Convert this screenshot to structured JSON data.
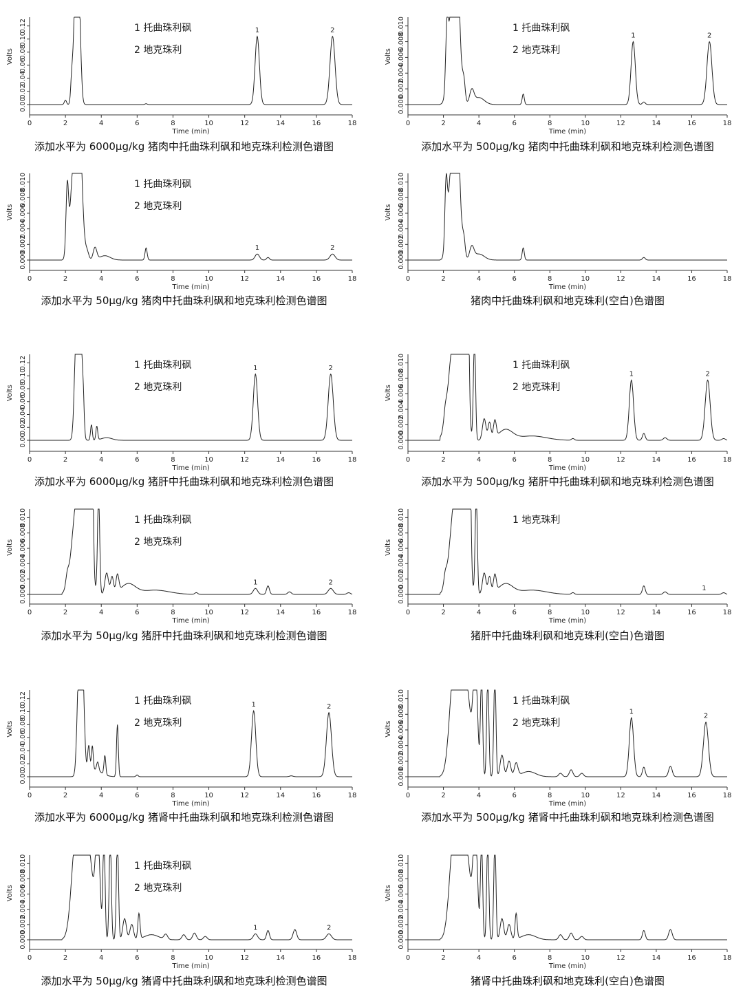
{
  "chart_data": [
    {
      "type": "line",
      "caption": "添加水平为 6000μg/kg 猪肉中托曲珠利砜和地克珠利检测色谱图",
      "ylabel": "Volts",
      "xlabel": "Time (min)",
      "xlim": [
        0,
        18
      ],
      "xticks": [
        "0",
        "2",
        "4",
        "6",
        "8",
        "10",
        "12",
        "14",
        "16",
        "18"
      ],
      "yticks": [
        "0.00",
        "0.02",
        "0.04",
        "0.06",
        "0.08",
        "0.10",
        "0.12"
      ],
      "legend": [
        "1  托曲珠利砜",
        "2  地克珠利"
      ],
      "peaks": [
        {
          "label": "1",
          "t": 12.7,
          "h": 0.78,
          "w": 0.12
        },
        {
          "label": "2",
          "t": 16.9,
          "h": 0.78,
          "w": 0.14
        }
      ],
      "baseline_peaks": [
        [
          2.0,
          0.05,
          0.06
        ],
        [
          2.35,
          0.25,
          0.06
        ],
        [
          2.55,
          1.2,
          0.1
        ],
        [
          2.75,
          1.2,
          0.1
        ],
        [
          6.5,
          0.01,
          0.06
        ]
      ]
    },
    {
      "type": "line",
      "caption": "添加水平为 500μg/kg 猪肉中托曲珠利砜和地克珠利检测色谱图",
      "ylabel": "Volts",
      "xlabel": "Time (min)",
      "xlim": [
        0,
        18
      ],
      "xticks": [
        "0",
        "2",
        "4",
        "6",
        "8",
        "10",
        "12",
        "14",
        "16",
        "18"
      ],
      "yticks": [
        "0.000",
        "0.002",
        "0.004",
        "0.006",
        "0.008",
        "0.010"
      ],
      "legend": [
        "1  托曲珠利砜",
        "2  地克珠利"
      ],
      "peaks": [
        {
          "label": "1",
          "t": 12.7,
          "h": 0.72,
          "w": 0.12
        },
        {
          "label": "2",
          "t": 17.0,
          "h": 0.72,
          "w": 0.14
        }
      ],
      "baseline_peaks": [
        [
          2.2,
          0.65,
          0.07
        ],
        [
          2.5,
          1.2,
          0.2
        ],
        [
          2.8,
          1.2,
          0.15
        ],
        [
          3.15,
          0.25,
          0.08
        ],
        [
          3.6,
          0.15,
          0.12
        ],
        [
          4.0,
          0.08,
          0.3
        ],
        [
          6.5,
          0.12,
          0.06
        ],
        [
          13.3,
          0.03,
          0.08
        ]
      ]
    },
    {
      "type": "line",
      "caption": "添加水平为 50μg/kg 猪肉中托曲珠利砜和地克珠利检测色谱图",
      "ylabel": "Volts",
      "xlabel": "Time (min)",
      "xlim": [
        0,
        18
      ],
      "xticks": [
        "0",
        "2",
        "4",
        "6",
        "8",
        "10",
        "12",
        "14",
        "16",
        "18"
      ],
      "yticks": [
        "0.000",
        "0.002",
        "0.004",
        "0.006",
        "0.008",
        "0.010"
      ],
      "legend": [
        "1  托曲珠利砜",
        "2  地克珠利"
      ],
      "peaks": [
        {
          "label": "1",
          "t": 12.7,
          "h": 0.07,
          "w": 0.12
        },
        {
          "label": "2",
          "t": 16.9,
          "h": 0.07,
          "w": 0.14
        }
      ],
      "baseline_peaks": [
        [
          2.1,
          0.75,
          0.07
        ],
        [
          2.5,
          1.2,
          0.2
        ],
        [
          2.8,
          1.2,
          0.15
        ],
        [
          3.2,
          0.1,
          0.1
        ],
        [
          3.65,
          0.14,
          0.1
        ],
        [
          4.2,
          0.05,
          0.3
        ],
        [
          6.5,
          0.14,
          0.06
        ],
        [
          13.3,
          0.03,
          0.08
        ]
      ]
    },
    {
      "type": "line",
      "caption": "猪肉中托曲珠利砜和地克珠利(空白)色谱图",
      "ylabel": "Volts",
      "xlabel": "Time (min)",
      "xlim": [
        0,
        18
      ],
      "xticks": [
        "0",
        "2",
        "4",
        "6",
        "8",
        "10",
        "12",
        "14",
        "16",
        "18"
      ],
      "yticks": [
        "0.000",
        "0.002",
        "0.004",
        "0.006",
        "0.008",
        "0.010"
      ],
      "legend": [],
      "peaks": [],
      "baseline_peaks": [
        [
          2.15,
          0.72,
          0.07
        ],
        [
          2.5,
          1.2,
          0.2
        ],
        [
          2.8,
          1.2,
          0.15
        ],
        [
          3.15,
          0.22,
          0.08
        ],
        [
          3.6,
          0.14,
          0.12
        ],
        [
          4.0,
          0.07,
          0.3
        ],
        [
          6.5,
          0.14,
          0.06
        ],
        [
          13.3,
          0.03,
          0.08
        ]
      ]
    },
    {
      "type": "line",
      "caption": "添加水平为 6000μg/kg 猪肝中托曲珠利砜和地克珠利检测色谱图",
      "ylabel": "Volts",
      "xlabel": "Time (min)",
      "xlim": [
        0,
        18
      ],
      "xticks": [
        "0",
        "2",
        "4",
        "6",
        "8",
        "10",
        "12",
        "14",
        "16",
        "18"
      ],
      "yticks": [
        "0.00",
        "0.02",
        "0.04",
        "0.06",
        "0.08",
        "0.10",
        "0.12"
      ],
      "legend": [
        "1  托曲珠利砜",
        "2  地克珠利"
      ],
      "peaks": [
        {
          "label": "1",
          "t": 12.6,
          "h": 0.77,
          "w": 0.12
        },
        {
          "label": "2",
          "t": 16.8,
          "h": 0.77,
          "w": 0.14
        }
      ],
      "baseline_peaks": [
        [
          2.6,
          1.2,
          0.1
        ],
        [
          2.85,
          1.2,
          0.1
        ],
        [
          3.0,
          0.25,
          0.05
        ],
        [
          3.45,
          0.18,
          0.05
        ],
        [
          3.75,
          0.16,
          0.05
        ],
        [
          4.3,
          0.03,
          0.3
        ]
      ]
    },
    {
      "type": "line",
      "caption": "添加水平为 500μg/kg 猪肝中托曲珠利砜和地克珠利检测色谱图",
      "ylabel": "Volts",
      "xlabel": "Time (min)",
      "xlim": [
        0,
        18
      ],
      "xticks": [
        "0",
        "2",
        "4",
        "6",
        "8",
        "10",
        "12",
        "14",
        "16",
        "18"
      ],
      "yticks": [
        "0.000",
        "0.002",
        "0.004",
        "0.006",
        "0.008",
        "0.010"
      ],
      "legend": [
        "1  托曲珠利砜",
        "2  地克珠利"
      ],
      "peaks": [
        {
          "label": "1",
          "t": 12.6,
          "h": 0.7,
          "w": 0.12
        },
        {
          "label": "2",
          "t": 16.9,
          "h": 0.7,
          "w": 0.14
        }
      ],
      "baseline_peaks": [
        [
          2.1,
          0.12,
          0.08
        ],
        [
          2.6,
          1.2,
          0.3
        ],
        [
          3.1,
          1.2,
          0.2
        ],
        [
          3.4,
          1.2,
          0.06
        ],
        [
          3.75,
          1.2,
          0.06
        ],
        [
          4.3,
          0.25,
          0.1
        ],
        [
          4.6,
          0.2,
          0.08
        ],
        [
          4.9,
          0.2,
          0.08
        ],
        [
          5.5,
          0.12,
          0.4
        ],
        [
          7.0,
          0.05,
          0.8
        ],
        [
          9.3,
          0.02,
          0.08
        ],
        [
          13.3,
          0.08,
          0.08
        ],
        [
          14.5,
          0.03,
          0.1
        ],
        [
          17.8,
          0.02,
          0.1
        ]
      ]
    },
    {
      "type": "line",
      "caption": "添加水平为 50μg/kg 猪肝中托曲珠利砜和地克珠利检测色谱图",
      "ylabel": "Volts",
      "xlabel": "Time (min)",
      "xlim": [
        0,
        18
      ],
      "xticks": [
        "0",
        "2",
        "4",
        "6",
        "8",
        "10",
        "12",
        "14",
        "16",
        "18"
      ],
      "yticks": [
        "0.000",
        "0.002",
        "0.004",
        "0.006",
        "0.008",
        "0.010"
      ],
      "legend": [
        "1  托曲珠利砜",
        "2  地克珠利"
      ],
      "peaks": [
        {
          "label": "1",
          "t": 12.6,
          "h": 0.07,
          "w": 0.12
        },
        {
          "label": "2",
          "t": 16.8,
          "h": 0.07,
          "w": 0.14
        }
      ],
      "baseline_peaks": [
        [
          2.1,
          0.12,
          0.08
        ],
        [
          2.7,
          1.2,
          0.3
        ],
        [
          3.2,
          1.2,
          0.2
        ],
        [
          3.5,
          1.2,
          0.06
        ],
        [
          3.85,
          1.2,
          0.06
        ],
        [
          4.3,
          0.25,
          0.1
        ],
        [
          4.6,
          0.2,
          0.08
        ],
        [
          4.9,
          0.2,
          0.08
        ],
        [
          5.5,
          0.12,
          0.4
        ],
        [
          7.0,
          0.05,
          0.8
        ],
        [
          9.3,
          0.02,
          0.08
        ],
        [
          13.3,
          0.1,
          0.08
        ],
        [
          14.5,
          0.03,
          0.1
        ],
        [
          17.8,
          0.02,
          0.1
        ]
      ]
    },
    {
      "type": "line",
      "caption": "猪肝中托曲珠利砜和地克珠利(空白)色谱图",
      "ylabel": "Volts",
      "xlabel": "Time (min)",
      "xlim": [
        0,
        18
      ],
      "xticks": [
        "0",
        "2",
        "4",
        "6",
        "8",
        "10",
        "12",
        "14",
        "16",
        "18"
      ],
      "yticks": [
        "0.000",
        "0.002",
        "0.004",
        "0.006",
        "0.008",
        "0.010"
      ],
      "legend": [
        "1 地克珠利"
      ],
      "peaks": [
        {
          "label": "1",
          "t": 16.7,
          "h": 0.0,
          "w": 0.14
        }
      ],
      "baseline_peaks": [
        [
          2.1,
          0.12,
          0.08
        ],
        [
          2.7,
          1.2,
          0.3
        ],
        [
          3.2,
          1.2,
          0.2
        ],
        [
          3.5,
          1.2,
          0.06
        ],
        [
          3.85,
          1.2,
          0.06
        ],
        [
          4.3,
          0.25,
          0.1
        ],
        [
          4.6,
          0.2,
          0.08
        ],
        [
          4.9,
          0.2,
          0.08
        ],
        [
          5.5,
          0.12,
          0.4
        ],
        [
          7.0,
          0.05,
          0.8
        ],
        [
          9.3,
          0.02,
          0.08
        ],
        [
          13.3,
          0.1,
          0.08
        ],
        [
          14.5,
          0.03,
          0.1
        ],
        [
          17.8,
          0.02,
          0.1
        ]
      ]
    },
    {
      "type": "line",
      "caption": "添加水平为 6000μg/kg 猪肾中托曲珠利砜和地克珠利检测色谱图",
      "ylabel": "Volts",
      "xlabel": "Time (min)",
      "xlim": [
        0,
        18
      ],
      "xticks": [
        "0",
        "2",
        "4",
        "6",
        "8",
        "10",
        "12",
        "14",
        "16",
        "18"
      ],
      "yticks": [
        "0.00",
        "0.02",
        "0.04",
        "0.06",
        "0.08",
        "0.10",
        "0.12"
      ],
      "legend": [
        "1  托曲珠利砜",
        "2  地克珠利"
      ],
      "peaks": [
        {
          "label": "1",
          "t": 12.5,
          "h": 0.76,
          "w": 0.12
        },
        {
          "label": "2",
          "t": 16.7,
          "h": 0.74,
          "w": 0.14
        }
      ],
      "baseline_peaks": [
        [
          2.75,
          1.2,
          0.1
        ],
        [
          2.95,
          1.2,
          0.1
        ],
        [
          3.3,
          0.3,
          0.06
        ],
        [
          3.5,
          0.28,
          0.05
        ],
        [
          3.8,
          0.1,
          0.06
        ],
        [
          4.2,
          0.22,
          0.05
        ],
        [
          4.9,
          0.6,
          0.05
        ],
        [
          3.6,
          0.08,
          0.4
        ],
        [
          6.0,
          0.02,
          0.06
        ],
        [
          14.6,
          0.01,
          0.1
        ]
      ]
    },
    {
      "type": "line",
      "caption": "添加水平为 500μg/kg 猪肾中托曲珠利砜和地克珠利检测色谱图",
      "ylabel": "Volts",
      "xlabel": "Time (min)",
      "xlim": [
        0,
        18
      ],
      "xticks": [
        "0",
        "2",
        "4",
        "6",
        "8",
        "10",
        "12",
        "14",
        "16",
        "18"
      ],
      "yticks": [
        "0.000",
        "0.002",
        "0.004",
        "0.006",
        "0.008",
        "0.010"
      ],
      "legend": [
        "1  托曲珠利砜",
        "2  地克珠利"
      ],
      "peaks": [
        {
          "label": "1",
          "t": 12.6,
          "h": 0.68,
          "w": 0.12
        },
        {
          "label": "2",
          "t": 16.8,
          "h": 0.63,
          "w": 0.14
        }
      ],
      "baseline_peaks": [
        [
          2.6,
          1.2,
          0.25
        ],
        [
          3.2,
          1.2,
          0.3
        ],
        [
          3.8,
          1.2,
          0.12
        ],
        [
          4.15,
          1.2,
          0.06
        ],
        [
          4.5,
          1.2,
          0.06
        ],
        [
          4.9,
          1.2,
          0.06
        ],
        [
          5.3,
          0.25,
          0.1
        ],
        [
          5.7,
          0.18,
          0.1
        ],
        [
          6.1,
          0.15,
          0.1
        ],
        [
          6.8,
          0.06,
          0.4
        ],
        [
          8.6,
          0.04,
          0.1
        ],
        [
          9.2,
          0.08,
          0.1
        ],
        [
          9.8,
          0.04,
          0.1
        ],
        [
          13.3,
          0.11,
          0.08
        ],
        [
          14.8,
          0.12,
          0.1
        ]
      ]
    },
    {
      "type": "line",
      "caption": "添加水平为 50μg/kg 猪肾中托曲珠利砜和地克珠利检测色谱图",
      "ylabel": "Volts",
      "xlabel": "Time (min)",
      "xlim": [
        0,
        18
      ],
      "xticks": [
        "0",
        "2",
        "4",
        "6",
        "8",
        "10",
        "12",
        "14",
        "16",
        "18"
      ],
      "yticks": [
        "0.000",
        "0.002",
        "0.004",
        "0.006",
        "0.008",
        "0.010"
      ],
      "legend": [
        "1  托曲珠利砜",
        "2  地克珠利"
      ],
      "peaks": [
        {
          "label": "1",
          "t": 12.6,
          "h": 0.07,
          "w": 0.12
        },
        {
          "label": "2",
          "t": 16.7,
          "h": 0.07,
          "w": 0.14
        }
      ],
      "baseline_peaks": [
        [
          2.6,
          1.2,
          0.25
        ],
        [
          3.2,
          1.2,
          0.3
        ],
        [
          3.8,
          1.2,
          0.12
        ],
        [
          4.15,
          1.2,
          0.06
        ],
        [
          4.5,
          1.2,
          0.06
        ],
        [
          4.9,
          1.2,
          0.06
        ],
        [
          5.3,
          0.25,
          0.1
        ],
        [
          5.7,
          0.18,
          0.1
        ],
        [
          6.1,
          0.3,
          0.06
        ],
        [
          6.8,
          0.06,
          0.4
        ],
        [
          7.6,
          0.06,
          0.1
        ],
        [
          8.6,
          0.06,
          0.1
        ],
        [
          9.2,
          0.08,
          0.1
        ],
        [
          9.8,
          0.04,
          0.1
        ],
        [
          13.3,
          0.11,
          0.08
        ],
        [
          14.8,
          0.12,
          0.1
        ]
      ]
    },
    {
      "type": "line",
      "caption": "猪肾中托曲珠利砜和地克珠利(空白)色谱图",
      "ylabel": "Volts",
      "xlabel": "Time (min)",
      "xlim": [
        0,
        18
      ],
      "xticks": [
        "0",
        "2",
        "4",
        "6",
        "8",
        "10",
        "12",
        "14",
        "16",
        "18"
      ],
      "yticks": [
        "0.000",
        "0.002",
        "0.004",
        "0.006",
        "0.008",
        "0.010"
      ],
      "legend": [],
      "peaks": [],
      "baseline_peaks": [
        [
          2.6,
          1.2,
          0.25
        ],
        [
          3.2,
          1.2,
          0.3
        ],
        [
          3.8,
          1.2,
          0.12
        ],
        [
          4.15,
          1.2,
          0.06
        ],
        [
          4.5,
          1.2,
          0.06
        ],
        [
          4.9,
          1.2,
          0.06
        ],
        [
          5.3,
          0.25,
          0.1
        ],
        [
          5.7,
          0.18,
          0.1
        ],
        [
          6.1,
          0.3,
          0.06
        ],
        [
          6.8,
          0.06,
          0.4
        ],
        [
          8.6,
          0.06,
          0.1
        ],
        [
          9.2,
          0.08,
          0.1
        ],
        [
          9.8,
          0.04,
          0.1
        ],
        [
          13.3,
          0.11,
          0.08
        ],
        [
          14.8,
          0.12,
          0.1
        ]
      ]
    }
  ]
}
